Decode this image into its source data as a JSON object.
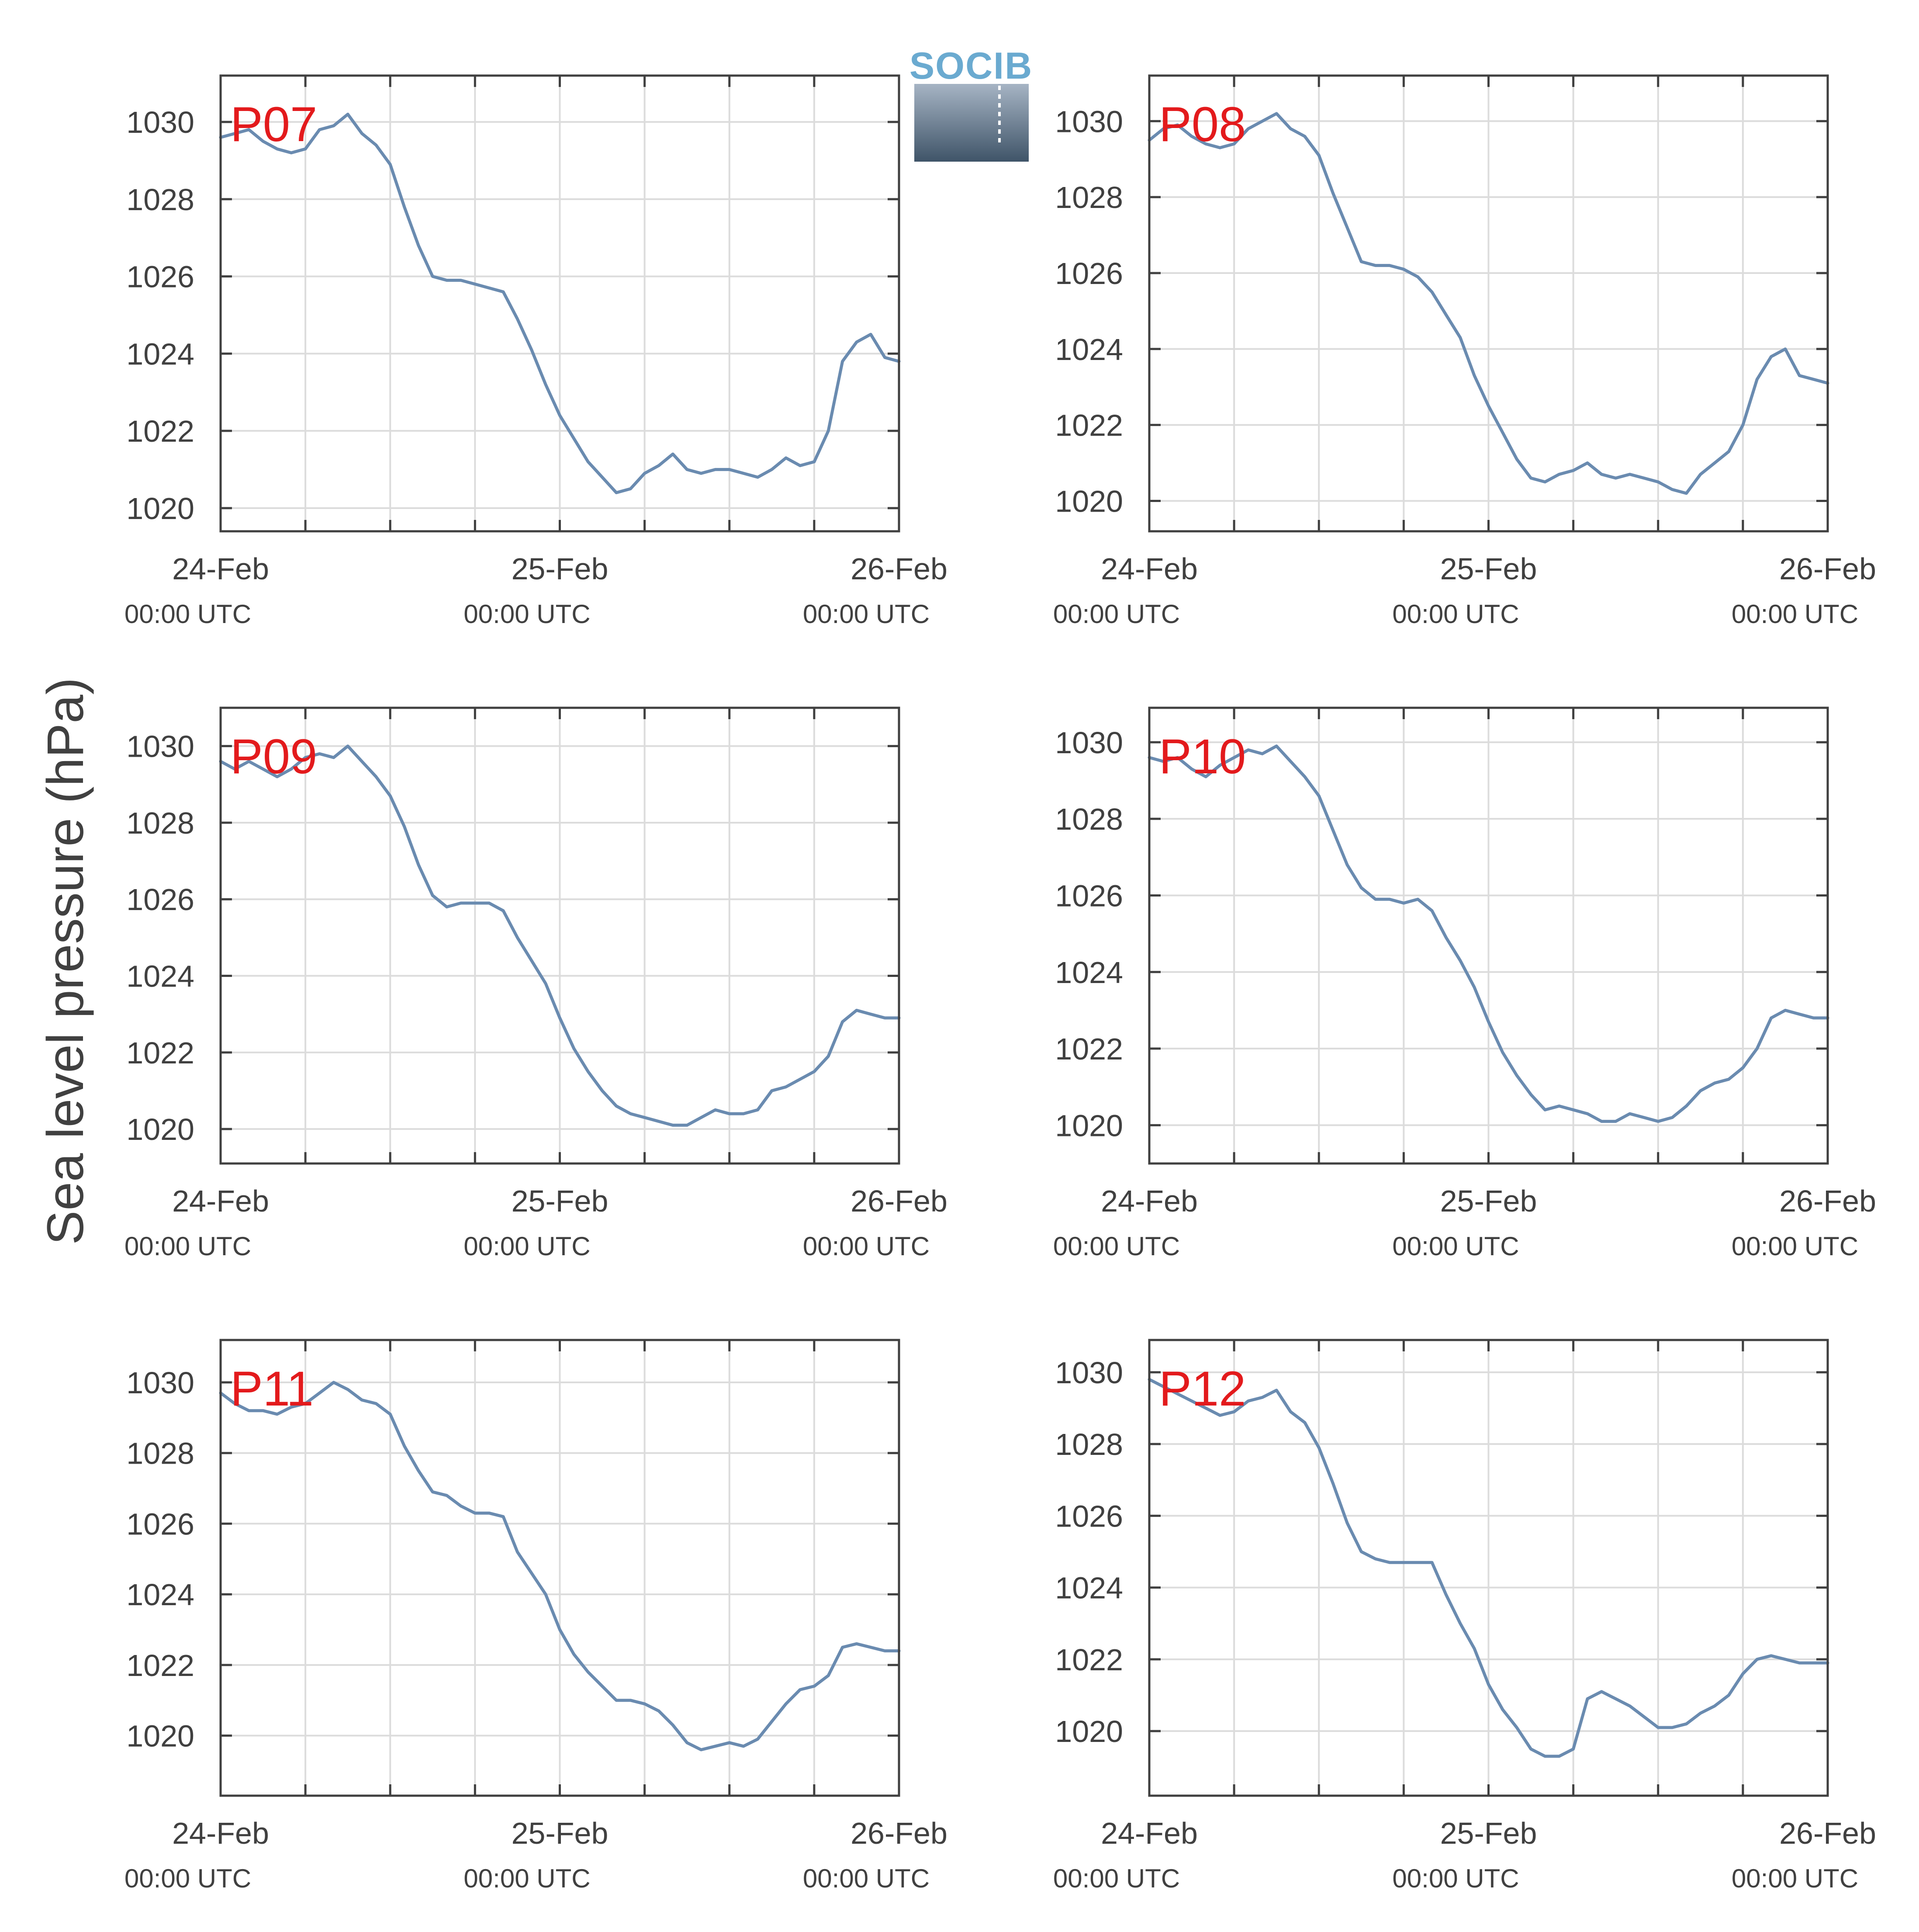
{
  "ylabel": "Sea level pressure (hPa)",
  "logo": {
    "text": "SOCIB",
    "color": "#6aaad0"
  },
  "series_color": "#6a8bb0",
  "panel_label_color": "#e31a1c",
  "chart_data": [
    {
      "type": "line",
      "panel": "P07",
      "x_range_hours": [
        0,
        48
      ],
      "ylim": [
        1019.4,
        1031.2
      ],
      "yticks": [
        1020,
        1022,
        1024,
        1026,
        1028,
        1030
      ],
      "xticks": [
        {
          "hour": 0,
          "date": "24-Feb",
          "time": "00:00 UTC"
        },
        {
          "hour": 24,
          "date": "25-Feb",
          "time": "00:00 UTC"
        },
        {
          "hour": 48,
          "date": "26-Feb",
          "time": "00:00 UTC"
        }
      ],
      "grid": true,
      "x": [
        0,
        1,
        2,
        3,
        4,
        5,
        6,
        7,
        8,
        9,
        10,
        11,
        12,
        13,
        14,
        15,
        16,
        17,
        18,
        19,
        20,
        21,
        22,
        23,
        24,
        25,
        26,
        27,
        28,
        29,
        30,
        31,
        32,
        33,
        34,
        35,
        36,
        37,
        38,
        39,
        40,
        41,
        42,
        43,
        44,
        45,
        46,
        47,
        48
      ],
      "y": [
        1029.6,
        1029.7,
        1029.8,
        1029.5,
        1029.3,
        1029.2,
        1029.3,
        1029.8,
        1029.9,
        1030.2,
        1029.7,
        1029.4,
        1028.9,
        1027.8,
        1026.8,
        1026.0,
        1025.9,
        1025.9,
        1025.8,
        1025.7,
        1025.6,
        1024.9,
        1024.1,
        1023.2,
        1022.4,
        1021.8,
        1021.2,
        1020.8,
        1020.4,
        1020.5,
        1020.9,
        1021.1,
        1021.4,
        1021.0,
        1020.9,
        1021.0,
        1021.0,
        1020.9,
        1020.8,
        1021.0,
        1021.3,
        1021.1,
        1021.2,
        1022.0,
        1023.8,
        1024.3,
        1024.5,
        1023.9,
        1023.8
      ]
    },
    {
      "type": "line",
      "panel": "P08",
      "x_range_hours": [
        0,
        48
      ],
      "ylim": [
        1019.2,
        1031.2
      ],
      "yticks": [
        1020,
        1022,
        1024,
        1026,
        1028,
        1030
      ],
      "xticks": [
        {
          "hour": 0,
          "date": "24-Feb",
          "time": "00:00 UTC"
        },
        {
          "hour": 24,
          "date": "25-Feb",
          "time": "00:00 UTC"
        },
        {
          "hour": 48,
          "date": "26-Feb",
          "time": "00:00 UTC"
        }
      ],
      "grid": true,
      "x": [
        0,
        1,
        2,
        3,
        4,
        5,
        6,
        7,
        8,
        9,
        10,
        11,
        12,
        13,
        14,
        15,
        16,
        17,
        18,
        19,
        20,
        21,
        22,
        23,
        24,
        25,
        26,
        27,
        28,
        29,
        30,
        31,
        32,
        33,
        34,
        35,
        36,
        37,
        38,
        39,
        40,
        41,
        42,
        43,
        44,
        45,
        46,
        47,
        48
      ],
      "y": [
        1029.5,
        1029.8,
        1029.9,
        1029.6,
        1029.4,
        1029.3,
        1029.4,
        1029.8,
        1030.0,
        1030.2,
        1029.8,
        1029.6,
        1029.1,
        1028.1,
        1027.2,
        1026.3,
        1026.2,
        1026.2,
        1026.1,
        1025.9,
        1025.5,
        1024.9,
        1024.3,
        1023.3,
        1022.5,
        1021.8,
        1021.1,
        1020.6,
        1020.5,
        1020.7,
        1020.8,
        1021.0,
        1020.7,
        1020.6,
        1020.7,
        1020.6,
        1020.5,
        1020.3,
        1020.2,
        1020.7,
        1021.0,
        1021.3,
        1022.0,
        1023.2,
        1023.8,
        1024.0,
        1023.3,
        1023.2,
        1023.1
      ]
    },
    {
      "type": "line",
      "panel": "P09",
      "x_range_hours": [
        0,
        48
      ],
      "ylim": [
        1019.1,
        1031.0
      ],
      "yticks": [
        1020,
        1022,
        1024,
        1026,
        1028,
        1030
      ],
      "xticks": [
        {
          "hour": 0,
          "date": "24-Feb",
          "time": "00:00 UTC"
        },
        {
          "hour": 24,
          "date": "25-Feb",
          "time": "00:00 UTC"
        },
        {
          "hour": 48,
          "date": "26-Feb",
          "time": "00:00 UTC"
        }
      ],
      "grid": true,
      "x": [
        0,
        1,
        2,
        3,
        4,
        5,
        6,
        7,
        8,
        9,
        10,
        11,
        12,
        13,
        14,
        15,
        16,
        17,
        18,
        19,
        20,
        21,
        22,
        23,
        24,
        25,
        26,
        27,
        28,
        29,
        30,
        31,
        32,
        33,
        34,
        35,
        36,
        37,
        38,
        39,
        40,
        41,
        42,
        43,
        44,
        45,
        46,
        47,
        48
      ],
      "y": [
        1029.6,
        1029.4,
        1029.6,
        1029.4,
        1029.2,
        1029.4,
        1029.7,
        1029.8,
        1029.7,
        1030.0,
        1029.6,
        1029.2,
        1028.7,
        1027.9,
        1026.9,
        1026.1,
        1025.8,
        1025.9,
        1025.9,
        1025.9,
        1025.7,
        1025.0,
        1024.4,
        1023.8,
        1022.9,
        1022.1,
        1021.5,
        1021.0,
        1020.6,
        1020.4,
        1020.3,
        1020.2,
        1020.1,
        1020.1,
        1020.3,
        1020.5,
        1020.4,
        1020.4,
        1020.5,
        1021.0,
        1021.1,
        1021.3,
        1021.5,
        1021.9,
        1022.8,
        1023.1,
        1023.0,
        1022.9,
        1022.9
      ]
    },
    {
      "type": "line",
      "panel": "P10",
      "x_range_hours": [
        0,
        48
      ],
      "ylim": [
        1019.0,
        1030.9
      ],
      "yticks": [
        1020,
        1022,
        1024,
        1026,
        1028,
        1030
      ],
      "xticks": [
        {
          "hour": 0,
          "date": "24-Feb",
          "time": "00:00 UTC"
        },
        {
          "hour": 24,
          "date": "25-Feb",
          "time": "00:00 UTC"
        },
        {
          "hour": 48,
          "date": "26-Feb",
          "time": "00:00 UTC"
        }
      ],
      "grid": true,
      "x": [
        0,
        1,
        2,
        3,
        4,
        5,
        6,
        7,
        8,
        9,
        10,
        11,
        12,
        13,
        14,
        15,
        16,
        17,
        18,
        19,
        20,
        21,
        22,
        23,
        24,
        25,
        26,
        27,
        28,
        29,
        30,
        31,
        32,
        33,
        34,
        35,
        36,
        37,
        38,
        39,
        40,
        41,
        42,
        43,
        44,
        45,
        46,
        47,
        48
      ],
      "y": [
        1029.6,
        1029.5,
        1029.6,
        1029.3,
        1029.1,
        1029.4,
        1029.6,
        1029.8,
        1029.7,
        1029.9,
        1029.5,
        1029.1,
        1028.6,
        1027.7,
        1026.8,
        1026.2,
        1025.9,
        1025.9,
        1025.8,
        1025.9,
        1025.6,
        1024.9,
        1024.3,
        1023.6,
        1022.7,
        1021.9,
        1021.3,
        1020.8,
        1020.4,
        1020.5,
        1020.4,
        1020.3,
        1020.1,
        1020.1,
        1020.3,
        1020.2,
        1020.1,
        1020.2,
        1020.5,
        1020.9,
        1021.1,
        1021.2,
        1021.5,
        1022.0,
        1022.8,
        1023.0,
        1022.9,
        1022.8,
        1022.8
      ]
    },
    {
      "type": "line",
      "panel": "P11",
      "x_range_hours": [
        0,
        48
      ],
      "ylim": [
        1018.3,
        1031.2
      ],
      "yticks": [
        1020,
        1022,
        1024,
        1026,
        1028,
        1030
      ],
      "xticks": [
        {
          "hour": 0,
          "date": "24-Feb",
          "time": "00:00 UTC"
        },
        {
          "hour": 24,
          "date": "25-Feb",
          "time": "00:00 UTC"
        },
        {
          "hour": 48,
          "date": "26-Feb",
          "time": "00:00 UTC"
        }
      ],
      "grid": true,
      "x": [
        0,
        1,
        2,
        3,
        4,
        5,
        6,
        7,
        8,
        9,
        10,
        11,
        12,
        13,
        14,
        15,
        16,
        17,
        18,
        19,
        20,
        21,
        22,
        23,
        24,
        25,
        26,
        27,
        28,
        29,
        30,
        31,
        32,
        33,
        34,
        35,
        36,
        37,
        38,
        39,
        40,
        41,
        42,
        43,
        44,
        45,
        46,
        47,
        48
      ],
      "y": [
        1029.7,
        1029.4,
        1029.2,
        1029.2,
        1029.1,
        1029.3,
        1029.4,
        1029.7,
        1030.0,
        1029.8,
        1029.5,
        1029.4,
        1029.1,
        1028.2,
        1027.5,
        1026.9,
        1026.8,
        1026.5,
        1026.3,
        1026.3,
        1026.2,
        1025.2,
        1024.6,
        1024.0,
        1023.0,
        1022.3,
        1021.8,
        1021.4,
        1021.0,
        1021.0,
        1020.9,
        1020.7,
        1020.3,
        1019.8,
        1019.6,
        1019.7,
        1019.8,
        1019.7,
        1019.9,
        1020.4,
        1020.9,
        1021.3,
        1021.4,
        1021.7,
        1022.5,
        1022.6,
        1022.5,
        1022.4,
        1022.4
      ]
    },
    {
      "type": "line",
      "panel": "P12",
      "x_range_hours": [
        0,
        48
      ],
      "ylim": [
        1018.2,
        1030.9
      ],
      "yticks": [
        1020,
        1022,
        1024,
        1026,
        1028,
        1030
      ],
      "xticks": [
        {
          "hour": 0,
          "date": "24-Feb",
          "time": "00:00 UTC"
        },
        {
          "hour": 24,
          "date": "25-Feb",
          "time": "00:00 UTC"
        },
        {
          "hour": 48,
          "date": "26-Feb",
          "time": "00:00 UTC"
        }
      ],
      "grid": true,
      "x": [
        0,
        1,
        2,
        3,
        4,
        5,
        6,
        7,
        8,
        9,
        10,
        11,
        12,
        13,
        14,
        15,
        16,
        17,
        18,
        19,
        20,
        21,
        22,
        23,
        24,
        25,
        26,
        27,
        28,
        29,
        30,
        31,
        32,
        33,
        34,
        35,
        36,
        37,
        38,
        39,
        40,
        41,
        42,
        43,
        44,
        45,
        46,
        47,
        48
      ],
      "y": [
        1029.8,
        1029.6,
        1029.4,
        1029.2,
        1029.0,
        1028.8,
        1028.9,
        1029.2,
        1029.3,
        1029.5,
        1028.9,
        1028.6,
        1027.9,
        1026.9,
        1025.8,
        1025.0,
        1024.8,
        1024.7,
        1024.7,
        1024.7,
        1024.7,
        1023.8,
        1023.0,
        1022.3,
        1021.3,
        1020.6,
        1020.1,
        1019.5,
        1019.3,
        1019.3,
        1019.5,
        1020.9,
        1021.1,
        1020.9,
        1020.7,
        1020.4,
        1020.1,
        1020.1,
        1020.2,
        1020.5,
        1020.7,
        1021.0,
        1021.6,
        1022.0,
        1022.1,
        1022.0,
        1021.9,
        1021.9,
        1021.9
      ]
    }
  ]
}
